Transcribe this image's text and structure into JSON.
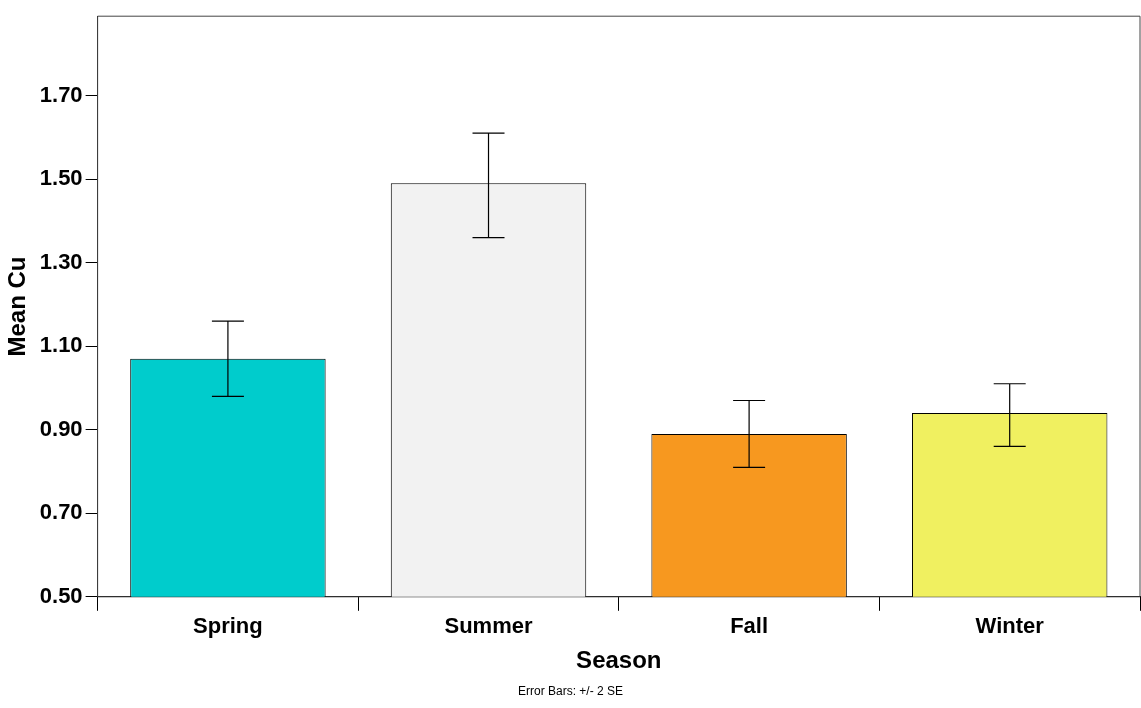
{
  "chart_data": {
    "type": "bar",
    "xlabel": "Season",
    "ylabel": "Mean Cu",
    "categories": [
      "Spring",
      "Summer",
      "Fall",
      "Winter"
    ],
    "values": [
      1.07,
      1.49,
      0.89,
      0.94
    ],
    "colors": [
      "#00cccc",
      "#f2f2f2",
      "#f7981f",
      "#f0f060"
    ],
    "errors": [
      [
        0.98,
        1.16
      ],
      [
        1.36,
        1.61
      ],
      [
        0.81,
        0.97
      ],
      [
        0.86,
        1.01
      ]
    ],
    "ylim": [
      0.5,
      1.89
    ],
    "yticks": [
      {
        "value": 0.5,
        "label": "0.50"
      },
      {
        "value": 0.7,
        "label": "0.70"
      },
      {
        "value": 0.9,
        "label": "0.90"
      },
      {
        "value": 1.1,
        "label": "1.10"
      },
      {
        "value": 1.3,
        "label": "1.30"
      },
      {
        "value": 1.5,
        "label": "1.50"
      },
      {
        "value": 1.7,
        "label": "1.70"
      }
    ],
    "grid": false,
    "legend": false,
    "annotations": [
      "Error Bars: +/- 2 SE"
    ]
  }
}
